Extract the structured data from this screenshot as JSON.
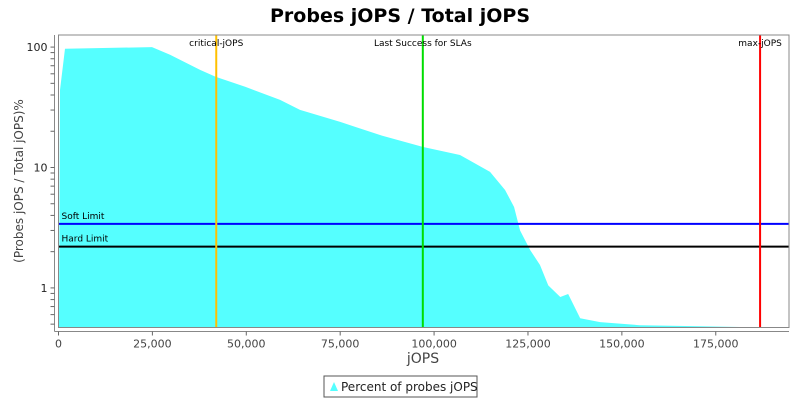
{
  "chart_data": {
    "type": "area",
    "title": "Probes jOPS / Total jOPS",
    "xlabel": "jOPS",
    "ylabel": "(Probes jOPS / Total jOPS)%",
    "y_scale": "log",
    "xlim": [
      0,
      194500
    ],
    "ylim": [
      0.469,
      126
    ],
    "grid": false,
    "legend_placement": "bottom",
    "x_ticks": [
      0,
      25000,
      50000,
      75000,
      100000,
      125000,
      150000,
      175000
    ],
    "x_tick_labels": [
      "0",
      "25,000",
      "50,000",
      "75,000",
      "100,000",
      "125,000",
      "150,000",
      "175,000"
    ],
    "y_ticks": [
      1,
      10,
      100
    ],
    "y_tick_labels": [
      "1",
      "10",
      "100"
    ],
    "series": [
      {
        "name": "Percent of probes jOPS",
        "color": "#55FFFF",
        "x": [
          130,
          400,
          1730,
          24900,
          29700,
          37700,
          41900,
          49700,
          59000,
          64300,
          75000,
          85600,
          97100,
          106900,
          114900,
          118900,
          121300,
          122900,
          125600,
          128200,
          130400,
          133600,
          135700,
          138900,
          144200,
          154800,
          170800,
          186800
        ],
        "y": [
          0.47,
          44,
          96.8,
          100,
          86.3,
          64.7,
          56.6,
          46.8,
          36.4,
          30.1,
          23.9,
          18.6,
          14.8,
          12.7,
          9.2,
          6.5,
          4.7,
          3.0,
          2.06,
          1.55,
          1.05,
          0.84,
          0.89,
          0.56,
          0.52,
          0.49,
          0.48,
          0.47
        ]
      }
    ],
    "vertical_markers": [
      {
        "label": "critical-jOPS",
        "x": 42000,
        "color": "#FFC000"
      },
      {
        "label": "Last Success for SLAs",
        "x": 97000,
        "color": "#00DD00"
      },
      {
        "label": "max-jOPS",
        "x": 186800,
        "color": "#FF0000"
      }
    ],
    "horizontal_markers": [
      {
        "label": "Soft Limit",
        "y": 3.4,
        "color": "#0000FF"
      },
      {
        "label": "Hard Limit",
        "y": 2.2,
        "color": "#000000"
      }
    ]
  }
}
